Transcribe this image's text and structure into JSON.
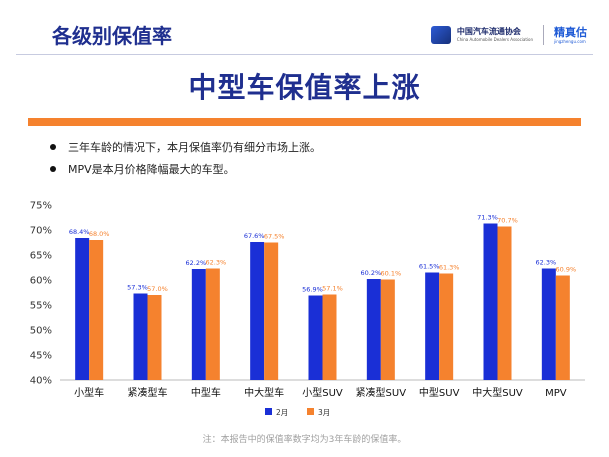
{
  "header": {
    "title": "各级别保值率",
    "association_cn": "中国汽车流通协会",
    "association_en": "China Automobile Dealers Association",
    "brand_cn": "精真估",
    "brand_url": "jingzhengu.com"
  },
  "main_title": "中型车保值率上涨",
  "bullets": [
    "三年车龄的情况下，本月保值率仍有细分市场上涨。",
    "MPV是本月价格降幅最大的车型。"
  ],
  "colors": {
    "feb": "#1a2fd6",
    "mar": "#f5822e",
    "title": "#1f2f8f",
    "accent": "#f5822e"
  },
  "chart_data": {
    "type": "bar",
    "categories": [
      "小型车",
      "紧凑型车",
      "中型车",
      "中大型车",
      "小型SUV",
      "紧凑型SUV",
      "中型SUV",
      "中大型SUV",
      "MPV"
    ],
    "series": [
      {
        "name": "2月",
        "values": [
          68.4,
          57.3,
          62.2,
          67.6,
          56.9,
          60.2,
          61.5,
          71.3,
          62.3
        ],
        "labels": [
          "68.4%",
          "57.3%",
          "62.2%",
          "67.6%",
          "56.9%",
          "60.2%",
          "61.5%",
          "71.3%",
          "62.3%"
        ]
      },
      {
        "name": "3月",
        "values": [
          68.0,
          57.0,
          62.3,
          67.5,
          57.1,
          60.1,
          61.3,
          70.7,
          60.9
        ],
        "labels": [
          "68.0%",
          "57.0%",
          "62.3%",
          "67.5%",
          "57.1%",
          "60.1%",
          "61.3%",
          "70.7%",
          "60.9%"
        ]
      }
    ],
    "ylim": [
      40,
      75
    ],
    "yticks": [
      "40%",
      "45%",
      "50%",
      "55%",
      "60%",
      "65%",
      "70%",
      "75%"
    ],
    "legend_position": "bottom"
  },
  "footnote": "注：本报告中的保值率数字均为3年车龄的保值率。"
}
